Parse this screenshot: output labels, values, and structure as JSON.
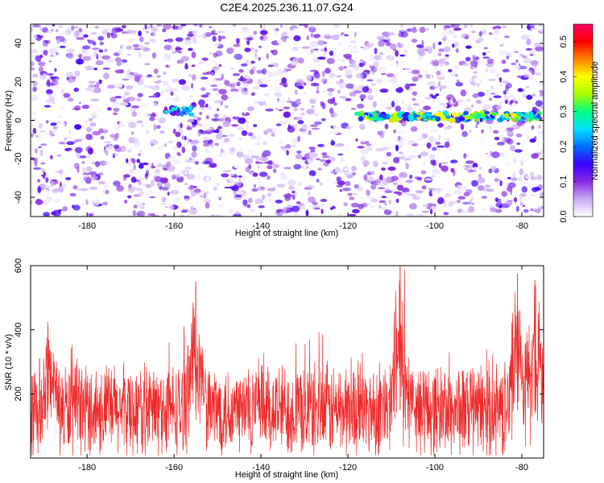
{
  "chart_data": [
    {
      "type": "heatmap",
      "title": "C2E4.2025.236.11.07.G24",
      "xlabel": "Height of straight line (km)",
      "ylabel": "Frequency (Hz)",
      "xlim": [
        -193,
        -75
      ],
      "ylim": [
        -50,
        50
      ],
      "x_ticks": [
        -180,
        -160,
        -140,
        -120,
        -100,
        -80
      ],
      "y_ticks": [
        -40,
        -20,
        0,
        20,
        40
      ],
      "colorbar": {
        "label": "Normalized spectral amplitude",
        "range": [
          0,
          0.55
        ],
        "ticks": [
          "0.0",
          "0.1",
          "0.2",
          "0.3",
          "0.4",
          "0.5"
        ],
        "colormap": [
          "#ffffff",
          "#c9a8f5",
          "#8a2be2",
          "#3a00ff",
          "#0070ff",
          "#00e0ff",
          "#00ff80",
          "#aaff00",
          "#ffff00",
          "#ff8000",
          "#ff0000",
          "#ff0066"
        ]
      },
      "features": [
        {
          "description": "Strong ridge near 0 Hz",
          "x_range": [
            -118,
            -76
          ],
          "freq": 2,
          "amplitude": 0.4
        },
        {
          "description": "Burst near 5 Hz",
          "x_range": [
            -162,
            -156
          ],
          "freq": 5,
          "amplitude": 0.25
        }
      ],
      "background_amplitude_range": [
        0.0,
        0.15
      ]
    },
    {
      "type": "line",
      "xlabel": "Height of straight line (km)",
      "ylabel": "SNR (10 * v/v)",
      "xlim": [
        -193,
        -75
      ],
      "ylim": [
        0,
        600
      ],
      "x_ticks": [
        -180,
        -160,
        -140,
        -120,
        -100,
        -80
      ],
      "y_ticks": [
        200,
        400,
        600
      ],
      "series": [
        {
          "name": "SNR",
          "color": "#ee2c2c",
          "baseline": 150,
          "typical_range": [
            20,
            300
          ],
          "peaks": [
            {
              "x": -189,
              "value": 410
            },
            {
              "x": -155,
              "value": 550
            },
            {
              "x": -108,
              "value": 600
            },
            {
              "x": -81,
              "value": 575
            },
            {
              "x": -77,
              "value": 555
            }
          ]
        }
      ]
    }
  ]
}
